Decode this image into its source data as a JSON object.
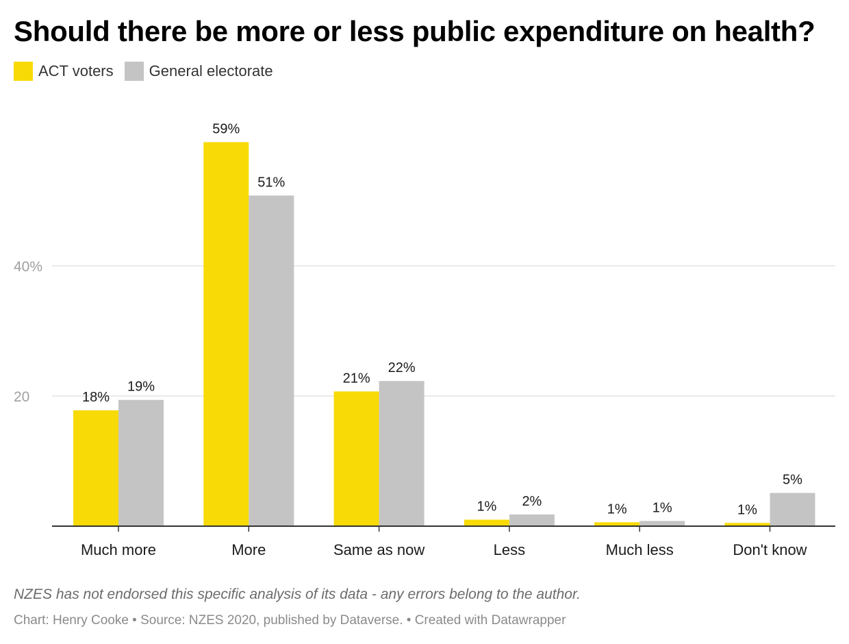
{
  "title": "Should there be more or less public expenditure on health?",
  "note": "NZES has not endorsed this specific analysis of its data - any errors belong to the author.",
  "credits": "Chart: Henry Cooke • Source: NZES 2020, published by Dataverse. • Created with Datawrapper",
  "colors": {
    "act": "#f8da06",
    "general": "#c4c4c4"
  },
  "chart_data": {
    "type": "bar",
    "title": "Should there be more or less public expenditure on health?",
    "categories": [
      "Much more",
      "More",
      "Same as now",
      "Less",
      "Much less",
      "Don't know"
    ],
    "series": [
      {
        "name": "ACT voters",
        "values": [
          17.8,
          59.0,
          20.7,
          1.0,
          0.6,
          0.5
        ],
        "labels": [
          "18%",
          "59%",
          "21%",
          "1%",
          "1%",
          "1%"
        ]
      },
      {
        "name": "General electorate",
        "values": [
          19.4,
          50.8,
          22.3,
          1.8,
          0.8,
          5.1
        ],
        "labels": [
          "19%",
          "51%",
          "22%",
          "2%",
          "1%",
          "5%"
        ]
      }
    ],
    "yticks": [
      {
        "value": 20,
        "label": "20"
      },
      {
        "value": 40,
        "label": "40%"
      }
    ],
    "ylim": [
      0,
      60
    ],
    "legend": "top-left",
    "grid": true,
    "xlabel": "",
    "ylabel": ""
  }
}
